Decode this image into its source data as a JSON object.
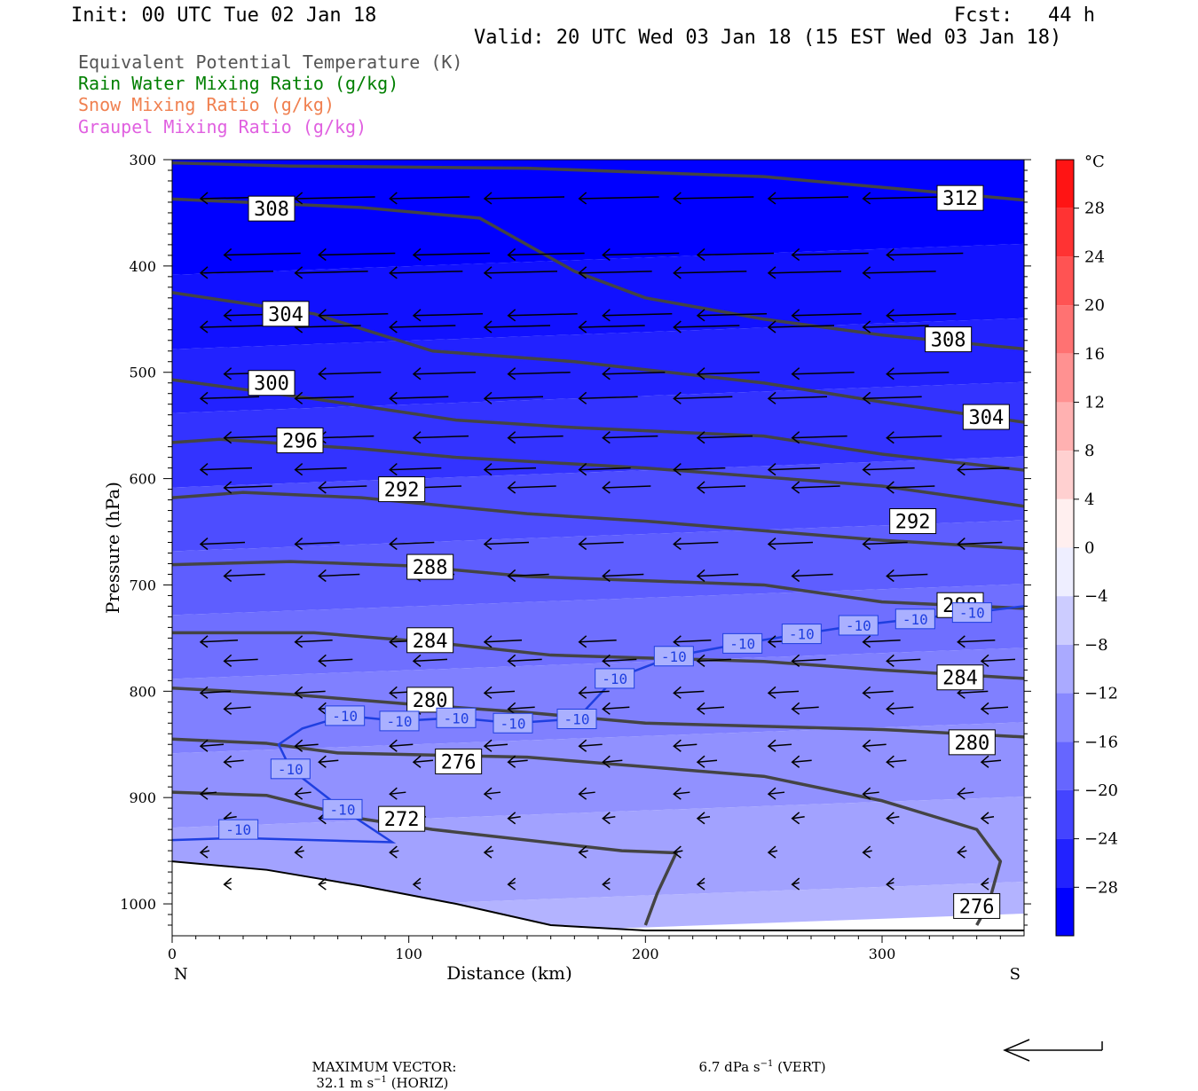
{
  "header": {
    "init": "Init: 00 UTC Tue 02 Jan 18",
    "fcst": "Fcst:   44 h",
    "valid": "Valid: 20 UTC Wed 03 Jan 18 (15 EST Wed 03 Jan 18)"
  },
  "legend": [
    {
      "label": "Equivalent Potential Temperature (K)",
      "color": "#555555"
    },
    {
      "label": "Rain Water Mixing Ratio (g/kg)",
      "color": "#007f00"
    },
    {
      "label": "Snow Mixing Ratio (g/kg)",
      "color": "#f08050"
    },
    {
      "label": "Graupel Mixing Ratio (g/kg)",
      "color": "#e060e0"
    }
  ],
  "chart_data": {
    "type": "contour",
    "xlabel": "Distance (km)",
    "ylabel": "Pressure (hPa)",
    "xlim": [
      0,
      360
    ],
    "ylim": [
      300,
      1030
    ],
    "x_ticks": [
      0,
      100,
      200,
      300
    ],
    "y_ticks": [
      300,
      400,
      500,
      600,
      700,
      800,
      900,
      1000
    ],
    "x_end_labels": {
      "left": "N",
      "right": "S"
    },
    "colorbar": {
      "unit": "°C",
      "levels": [
        28,
        24,
        20,
        16,
        12,
        8,
        4,
        0,
        -4,
        -8,
        -12,
        -16,
        -20,
        -24,
        -28
      ],
      "min": -32,
      "max": 32
    },
    "fill_bands": [
      {
        "p": 300,
        "t": -30
      },
      {
        "p": 400,
        "t": -28
      },
      {
        "p": 470,
        "t": -26
      },
      {
        "p": 530,
        "t": -24
      },
      {
        "p": 600,
        "t": -21
      },
      {
        "p": 660,
        "t": -19
      },
      {
        "p": 720,
        "t": -17
      },
      {
        "p": 780,
        "t": -15
      },
      {
        "p": 850,
        "t": -13
      },
      {
        "p": 920,
        "t": -11
      },
      {
        "p": 1000,
        "t": -9
      }
    ],
    "theta_e_contours": [
      {
        "value": "312",
        "points": [
          [
            0,
            303
          ],
          [
            50,
            306
          ],
          [
            150,
            308
          ],
          [
            250,
            316
          ],
          [
            360,
            338
          ]
        ]
      },
      {
        "value": "308",
        "points": [
          [
            0,
            337
          ],
          [
            80,
            345
          ],
          [
            130,
            355
          ],
          [
            170,
            405
          ],
          [
            200,
            430
          ],
          [
            250,
            450
          ],
          [
            300,
            465
          ],
          [
            360,
            478
          ]
        ]
      },
      {
        "value": "304",
        "points": [
          [
            0,
            425
          ],
          [
            60,
            445
          ],
          [
            110,
            480
          ],
          [
            170,
            490
          ],
          [
            250,
            510
          ],
          [
            300,
            528
          ],
          [
            360,
            547
          ]
        ]
      },
      {
        "value": "300",
        "points": [
          [
            0,
            507
          ],
          [
            60,
            525
          ],
          [
            120,
            545
          ],
          [
            170,
            552
          ],
          [
            250,
            560
          ],
          [
            300,
            577
          ],
          [
            360,
            592
          ]
        ]
      },
      {
        "value": "296",
        "points": [
          [
            0,
            566
          ],
          [
            20,
            563
          ],
          [
            80,
            572
          ],
          [
            120,
            580
          ],
          [
            200,
            590
          ],
          [
            300,
            607
          ],
          [
            360,
            626
          ]
        ]
      },
      {
        "value": "292",
        "points": [
          [
            0,
            618
          ],
          [
            30,
            613
          ],
          [
            80,
            618
          ],
          [
            150,
            633
          ],
          [
            200,
            640
          ],
          [
            300,
            658
          ],
          [
            360,
            666
          ]
        ]
      },
      {
        "value": "288",
        "points": [
          [
            0,
            681
          ],
          [
            50,
            678
          ],
          [
            100,
            682
          ],
          [
            150,
            692
          ],
          [
            250,
            700
          ],
          [
            300,
            716
          ],
          [
            360,
            722
          ]
        ]
      },
      {
        "value": "284",
        "points": [
          [
            0,
            745
          ],
          [
            60,
            745
          ],
          [
            110,
            754
          ],
          [
            160,
            766
          ],
          [
            250,
            772
          ],
          [
            300,
            780
          ],
          [
            360,
            788
          ]
        ]
      },
      {
        "value": "280",
        "points": [
          [
            0,
            797
          ],
          [
            50,
            803
          ],
          [
            100,
            812
          ],
          [
            150,
            820
          ],
          [
            200,
            830
          ],
          [
            300,
            836
          ],
          [
            360,
            843
          ]
        ]
      },
      {
        "value": "276",
        "points": [
          [
            0,
            845
          ],
          [
            40,
            849
          ],
          [
            70,
            858
          ],
          [
            150,
            862
          ],
          [
            250,
            880
          ],
          [
            300,
            903
          ],
          [
            340,
            930
          ],
          [
            350,
            960
          ],
          [
            345,
            1000
          ],
          [
            340,
            1020
          ]
        ]
      },
      {
        "value": "272",
        "points": [
          [
            0,
            895
          ],
          [
            40,
            898
          ],
          [
            80,
            920
          ],
          [
            110,
            930
          ],
          [
            190,
            950
          ],
          [
            213,
            952
          ],
          [
            205,
            990
          ],
          [
            200,
            1020
          ]
        ]
      }
    ],
    "temp_contour": {
      "value": "-10",
      "label_points": [
        [
          28,
          930
        ],
        [
          50,
          873
        ],
        [
          72,
          911
        ],
        [
          73,
          823
        ],
        [
          96,
          828
        ],
        [
          120,
          825
        ],
        [
          144,
          830
        ],
        [
          171,
          826
        ],
        [
          187,
          788
        ],
        [
          212,
          767
        ],
        [
          241,
          755
        ],
        [
          266,
          746
        ],
        [
          290,
          738
        ],
        [
          314,
          732
        ],
        [
          338,
          726
        ]
      ]
    },
    "contour_labels": [
      {
        "text": "312",
        "x": 333,
        "p": 336
      },
      {
        "text": "308",
        "x": 42,
        "p": 346
      },
      {
        "text": "308",
        "x": 328,
        "p": 469
      },
      {
        "text": "304",
        "x": 48,
        "p": 445
      },
      {
        "text": "304",
        "x": 344,
        "p": 542
      },
      {
        "text": "300",
        "x": 42,
        "p": 510
      },
      {
        "text": "296",
        "x": 54,
        "p": 564
      },
      {
        "text": "292",
        "x": 97,
        "p": 610
      },
      {
        "text": "292",
        "x": 313,
        "p": 640
      },
      {
        "text": "288",
        "x": 109,
        "p": 683
      },
      {
        "text": "288",
        "x": 333,
        "p": 719
      },
      {
        "text": "284",
        "x": 109,
        "p": 752
      },
      {
        "text": "284",
        "x": 333,
        "p": 787
      },
      {
        "text": "280",
        "x": 109,
        "p": 808
      },
      {
        "text": "280",
        "x": 338,
        "p": 848
      },
      {
        "text": "276",
        "x": 121,
        "p": 866
      },
      {
        "text": "272",
        "x": 97,
        "p": 920
      },
      {
        "text": "276",
        "x": 340,
        "p": 1002
      }
    ],
    "winds_note": "wind vectors mostly pointing westward (to the left), decreasing speed with depth",
    "terrain_boundary": [
      [
        0,
        960
      ],
      [
        40,
        968
      ],
      [
        80,
        983
      ],
      [
        120,
        1000
      ],
      [
        160,
        1020
      ],
      [
        200,
        1025
      ],
      [
        360,
        1025
      ]
    ],
    "footer": {
      "max_vector_label": "MAXIMUM VECTOR:",
      "horiz_value": "32.1 m s",
      "horiz_unit_suffix": " (HORIZ)",
      "vert_value": "6.7 dPa s",
      "vert_unit_suffix": " (VERT)",
      "exp": "−1"
    }
  }
}
